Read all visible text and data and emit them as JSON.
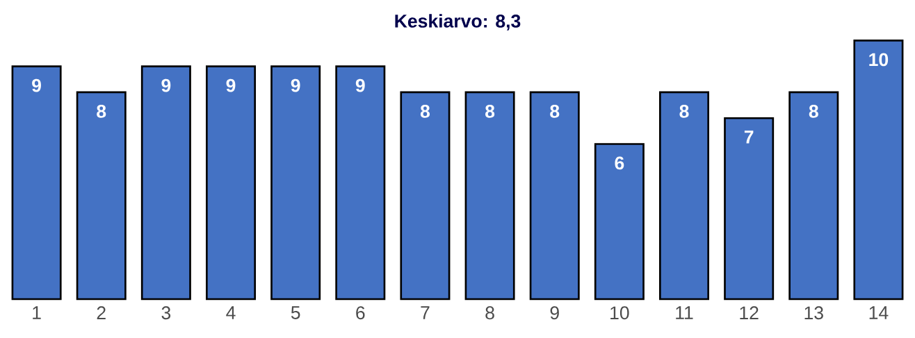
{
  "chart_data": {
    "type": "bar",
    "title": "Keskiarvo: 8,3",
    "categories": [
      "1",
      "2",
      "3",
      "4",
      "5",
      "6",
      "7",
      "8",
      "9",
      "10",
      "11",
      "12",
      "13",
      "14"
    ],
    "values": [
      9,
      8,
      9,
      9,
      9,
      9,
      8,
      8,
      8,
      6,
      8,
      7,
      8,
      10
    ],
    "color": "#4472c4",
    "data_labels": true
  }
}
